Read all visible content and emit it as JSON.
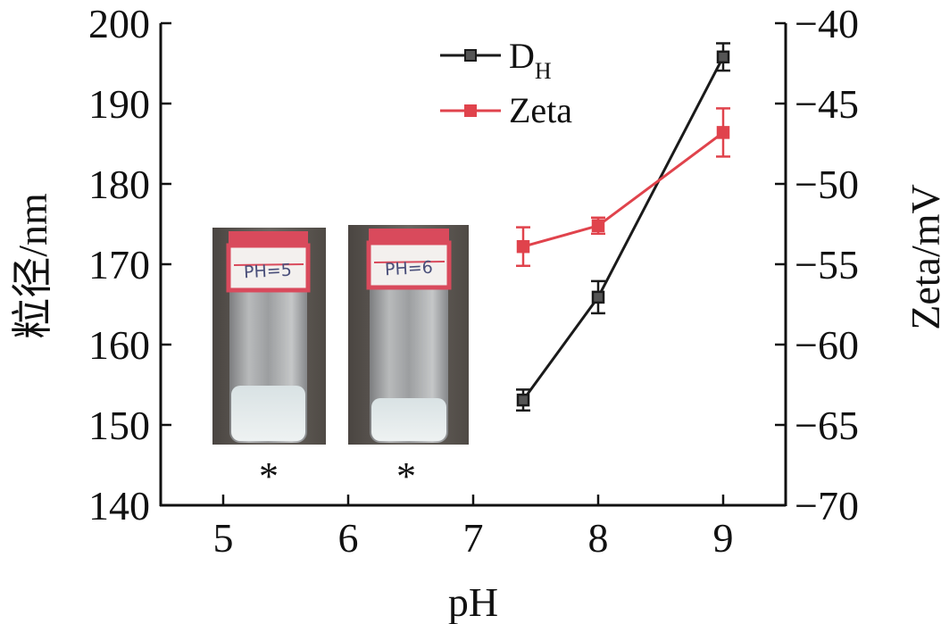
{
  "chart_data": {
    "type": "line",
    "x_label": "pH",
    "y_left_label": "粒径/nm",
    "y_right_label": "Zeta/mV",
    "x_ticks": [
      "5",
      "6",
      "7",
      "8",
      "9"
    ],
    "xlim": [
      4.5,
      9.5
    ],
    "ylim_left": [
      140,
      200
    ],
    "ylim_right": [
      -70,
      -40
    ],
    "y_left_ticks": [
      "140",
      "150",
      "160",
      "170",
      "180",
      "190",
      "200"
    ],
    "y_right_ticks": [
      "−70",
      "−65",
      "−60",
      "−55",
      "−50",
      "−45",
      "−40"
    ],
    "series": [
      {
        "name": "D",
        "name_subscript": "H",
        "axis": "left",
        "color": "#1a1a1a",
        "x": [
          7.4,
          8,
          9
        ],
        "y": [
          153.1,
          165.9,
          195.8
        ],
        "err": [
          1.3,
          2.0,
          1.7
        ]
      },
      {
        "name": "Zeta",
        "axis": "right",
        "color": "#e0434c",
        "x": [
          7.4,
          8,
          9
        ],
        "y": [
          -53.9,
          -52.6,
          -46.8
        ],
        "err": [
          1.2,
          0.5,
          1.5
        ]
      }
    ],
    "legend_position": "top-right",
    "insets": [
      {
        "label": "PH=5",
        "marker": "*"
      },
      {
        "label": "PH=6",
        "marker": "*"
      }
    ]
  }
}
